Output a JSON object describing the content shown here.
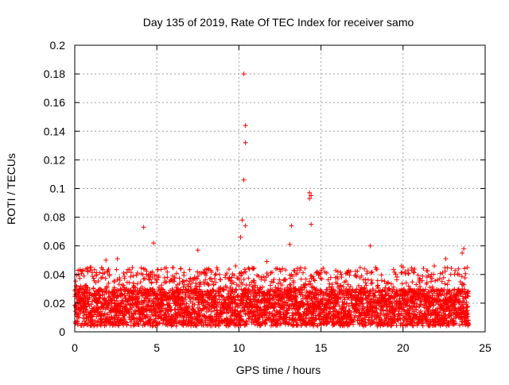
{
  "chart_data": {
    "type": "scatter",
    "title": "Day 135 of 2019, Rate Of TEC Index for receiver samo",
    "xlabel": "GPS time / hours",
    "ylabel": "ROTI / TECUs",
    "xlim": [
      0,
      25
    ],
    "ylim": [
      0,
      0.2
    ],
    "x_ticks": [
      0,
      5,
      10,
      15,
      20,
      25
    ],
    "x_tick_labels": [
      "0",
      "5",
      "10",
      "15",
      "20",
      "25"
    ],
    "y_ticks": [
      0,
      0.02,
      0.04,
      0.06,
      0.08,
      0.1,
      0.12,
      0.14,
      0.16,
      0.18,
      0.2
    ],
    "y_tick_labels": [
      "0",
      "0.02",
      "0.04",
      "0.06",
      "0.08",
      "0.1",
      "0.12",
      "0.14",
      "0.16",
      "0.18",
      "0.2"
    ],
    "grid": true,
    "marker": "plus",
    "marker_color": "#ff0000",
    "series": [
      {
        "name": "ROTI",
        "notable_points": [
          {
            "x": 10.3,
            "y": 0.18
          },
          {
            "x": 10.4,
            "y": 0.144
          },
          {
            "x": 10.4,
            "y": 0.132
          },
          {
            "x": 10.3,
            "y": 0.106
          },
          {
            "x": 14.3,
            "y": 0.097
          },
          {
            "x": 14.4,
            "y": 0.095
          },
          {
            "x": 14.3,
            "y": 0.093
          },
          {
            "x": 10.2,
            "y": 0.078
          },
          {
            "x": 10.4,
            "y": 0.074
          },
          {
            "x": 13.2,
            "y": 0.074
          },
          {
            "x": 14.4,
            "y": 0.075
          },
          {
            "x": 4.2,
            "y": 0.073
          },
          {
            "x": 10.1,
            "y": 0.066
          },
          {
            "x": 13.1,
            "y": 0.061
          },
          {
            "x": 4.8,
            "y": 0.062
          },
          {
            "x": 18.0,
            "y": 0.06
          },
          {
            "x": 23.7,
            "y": 0.058
          },
          {
            "x": 7.5,
            "y": 0.057
          },
          {
            "x": 23.6,
            "y": 0.055
          },
          {
            "x": 2.6,
            "y": 0.051
          },
          {
            "x": 11.7,
            "y": 0.049
          },
          {
            "x": 22.6,
            "y": 0.051
          },
          {
            "x": 21.9,
            "y": 0.046
          },
          {
            "x": 19.9,
            "y": 0.046
          },
          {
            "x": 1.9,
            "y": 0.05
          },
          {
            "x": 9.8,
            "y": 0.046
          }
        ],
        "background_band_summary": {
          "x_range": [
            0,
            24
          ],
          "typical_y_range": [
            0.004,
            0.03
          ],
          "upper_envelope_y": 0.045
        }
      }
    ]
  }
}
